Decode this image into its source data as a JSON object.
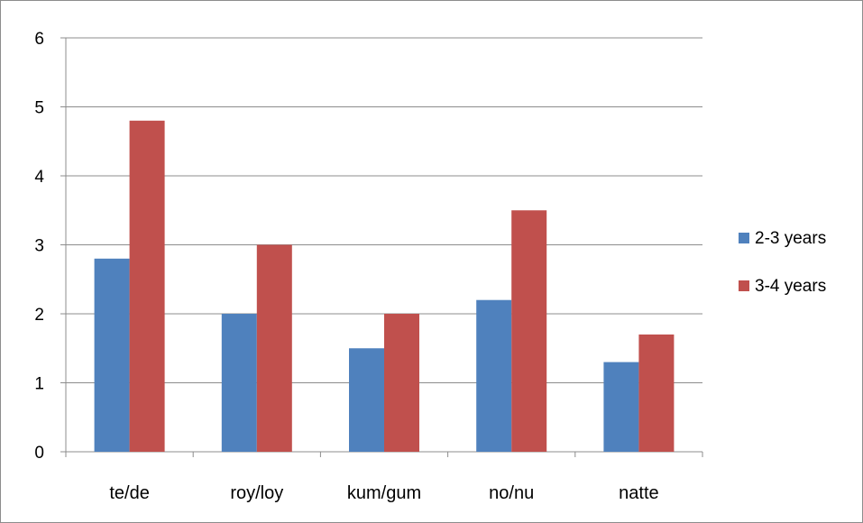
{
  "chart_data": {
    "type": "bar",
    "categories": [
      "te/de",
      "roy/loy",
      "kum/gum",
      "no/nu",
      "natte"
    ],
    "series": [
      {
        "name": "2-3 years",
        "values": [
          2.8,
          2.0,
          1.5,
          2.2,
          1.3
        ],
        "color": "#4f81bd"
      },
      {
        "name": "3-4 years",
        "values": [
          4.8,
          3.0,
          2.0,
          3.5,
          1.7
        ],
        "color": "#c0504d"
      }
    ],
    "title": "",
    "xlabel": "",
    "ylabel": "",
    "ylim": [
      0,
      6
    ],
    "yticks": [
      "0",
      "1",
      "2",
      "3",
      "4",
      "5",
      "6"
    ],
    "grid": true,
    "legend_position": "right"
  }
}
